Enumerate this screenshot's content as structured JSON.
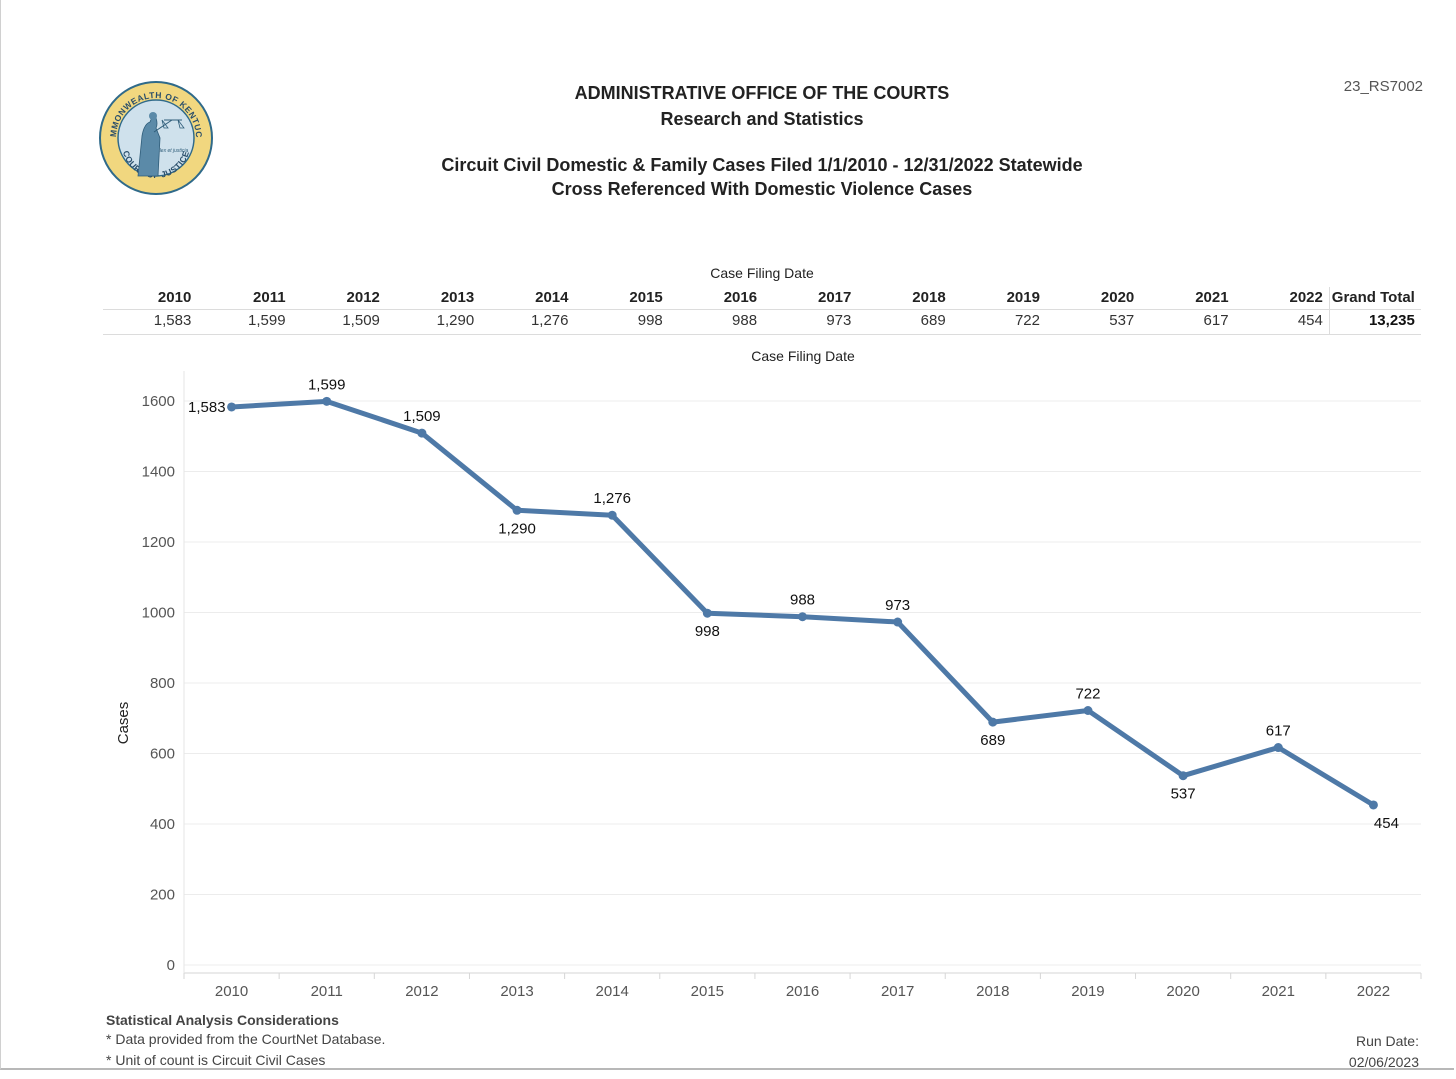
{
  "report": {
    "id": "23_RS7002",
    "org": "ADMINISTRATIVE OFFICE OF THE COURTS",
    "dept": "Research and Statistics",
    "title": "Circuit Civil Domestic & Family Cases Filed 1/1/2010 - 12/31/2022 Statewide",
    "subtitle": "Cross Referenced With Domestic Violence Cases"
  },
  "seal": {
    "top_text": "COMMONWEALTH OF KENTUCKY",
    "bottom_text": "COURT OF JUSTICE",
    "motto": "lex et justicia",
    "colors": {
      "ring": "#f1d77f",
      "inner": "#cfe1ec",
      "border": "#2f6a8a"
    }
  },
  "summary_table": {
    "caption": "Case Filing Date",
    "years": [
      "2010",
      "2011",
      "2012",
      "2013",
      "2014",
      "2015",
      "2016",
      "2017",
      "2018",
      "2019",
      "2020",
      "2021",
      "2022"
    ],
    "values": [
      "1,583",
      "1,599",
      "1,509",
      "1,290",
      "1,276",
      "998",
      "988",
      "973",
      "689",
      "722",
      "537",
      "617",
      "454"
    ],
    "grand_total_label": "Grand Total",
    "grand_total": "13,235"
  },
  "chart_data": {
    "type": "line",
    "title": "Case Filing Date",
    "xlabel": "",
    "ylabel": "Cases",
    "categories": [
      "2010",
      "2011",
      "2012",
      "2013",
      "2014",
      "2015",
      "2016",
      "2017",
      "2018",
      "2019",
      "2020",
      "2021",
      "2022"
    ],
    "series": [
      {
        "values": [
          1583,
          1599,
          1509,
          1290,
          1276,
          998,
          988,
          973,
          689,
          722,
          537,
          617,
          454
        ],
        "labels": [
          "1,583",
          "1,599",
          "1,509",
          "1,290",
          "1,276",
          "998",
          "988",
          "973",
          "689",
          "722",
          "537",
          "617",
          "454"
        ]
      }
    ],
    "yticks": [
      0,
      200,
      400,
      600,
      800,
      1000,
      1200,
      1400,
      1600
    ],
    "ylim": [
      0,
      1650
    ],
    "grid": true,
    "legend": "none",
    "color": "#4e79a7"
  },
  "footer": {
    "title": "Statistical Analysis Considerations",
    "notes": [
      "* Data provided from the CourtNet Database.",
      "* Unit of count is Circuit Civil Cases"
    ],
    "run_label": "Run Date:",
    "run_date": "02/06/2023"
  }
}
